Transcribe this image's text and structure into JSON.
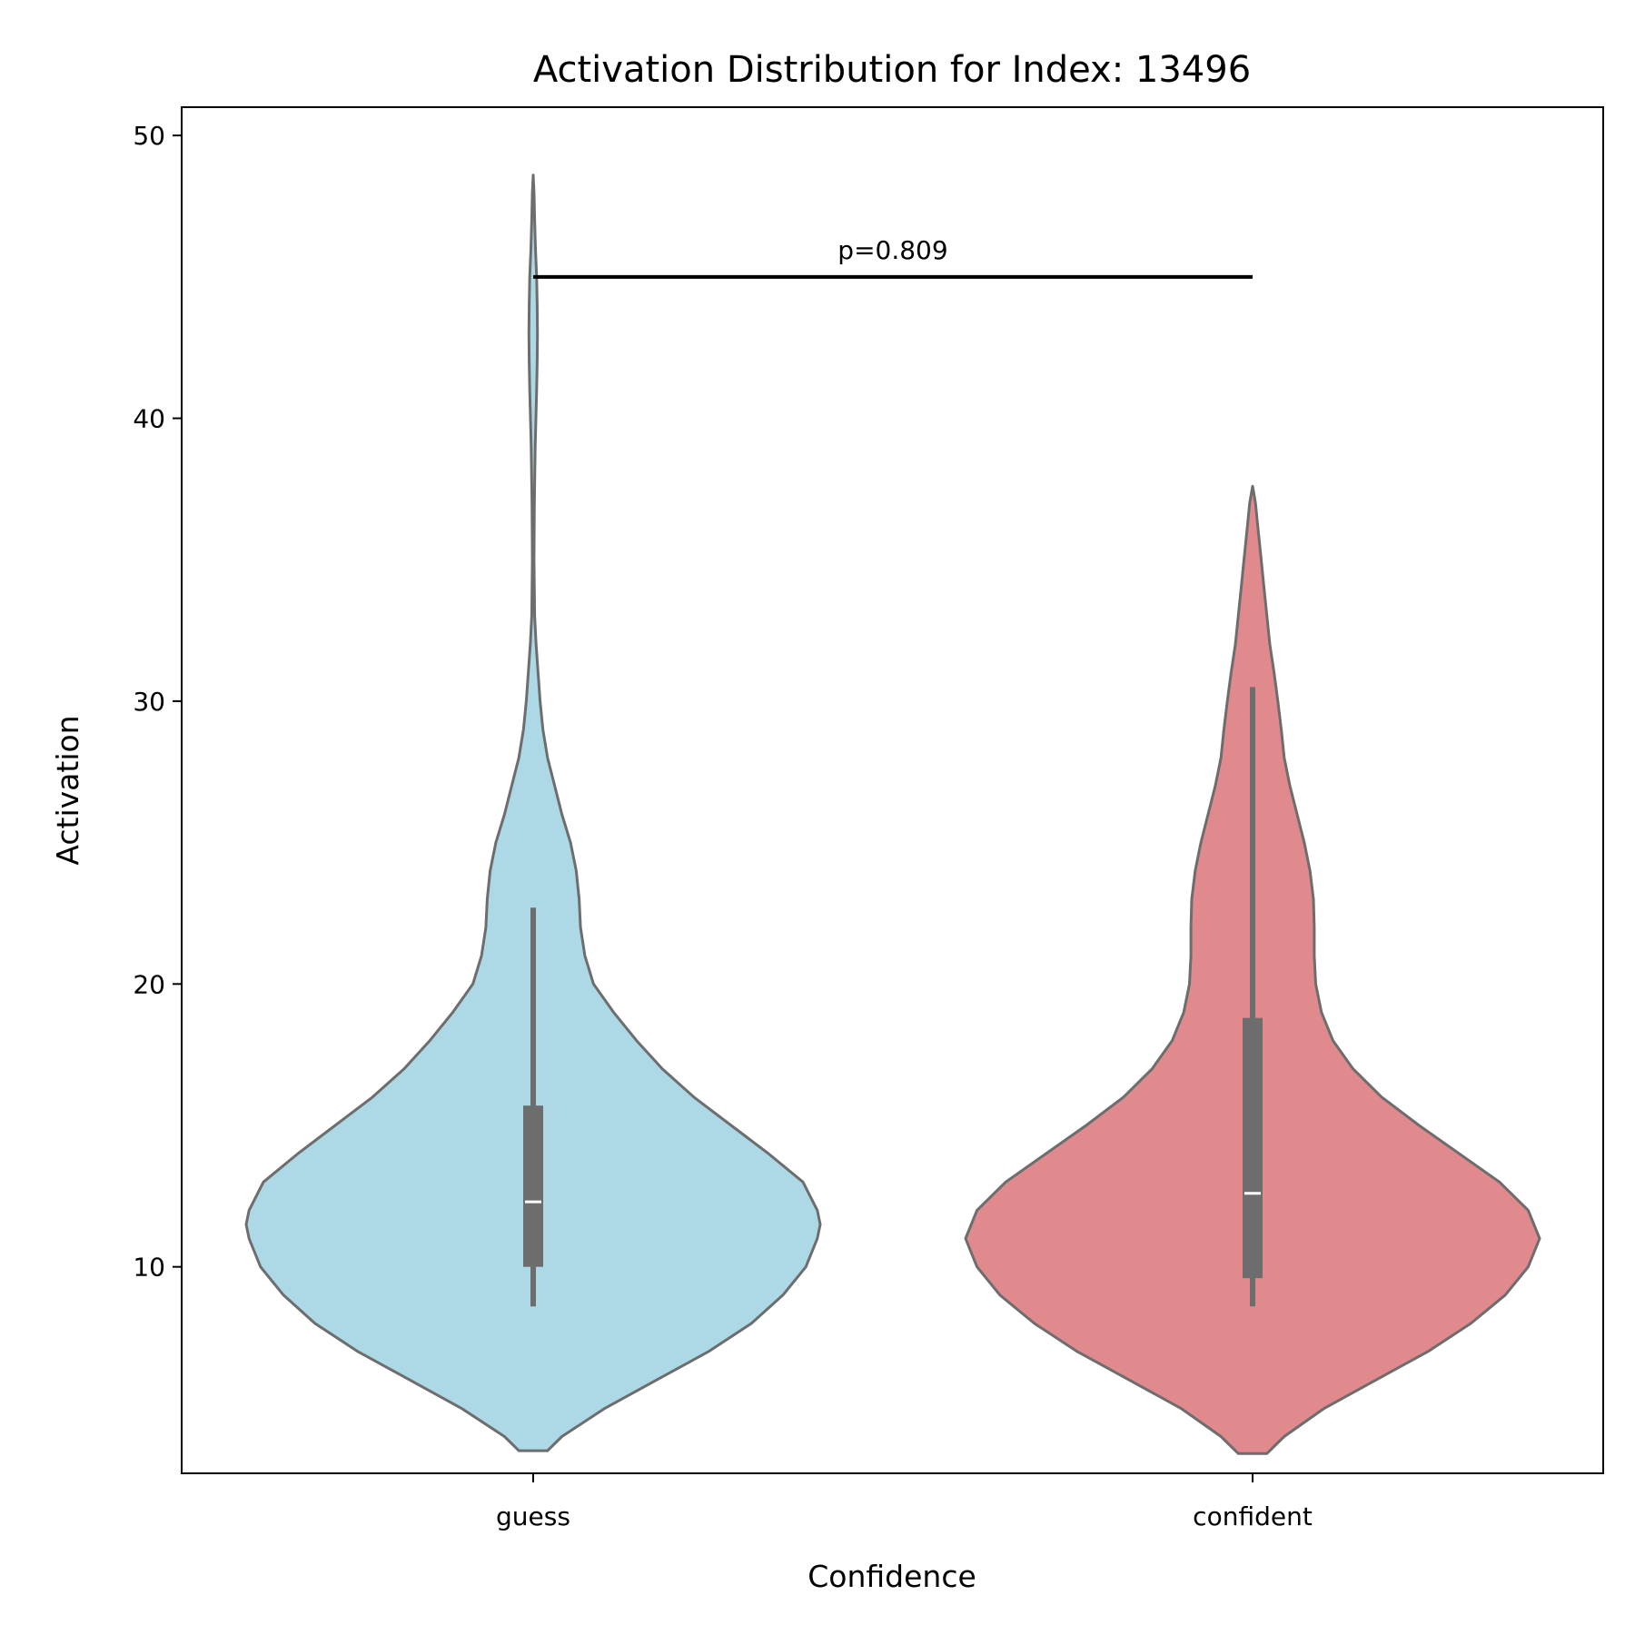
{
  "chart_data": {
    "type": "violin",
    "title": "Activation Distribution for Index: 13496",
    "xlabel": "Confidence",
    "ylabel": "Activation",
    "categories": [
      "guess",
      "confident"
    ],
    "ylim": [
      2.7,
      51.0
    ],
    "yticks": [
      10,
      20,
      30,
      40,
      50
    ],
    "grid": false,
    "series": [
      {
        "category": "guess",
        "color": "#add8e6",
        "min": 8.6,
        "q1": 10.0,
        "median": 12.3,
        "q3": 15.7,
        "whisker_high": 22.7,
        "kde_min": 3.5,
        "kde_max": 48.6,
        "density": [
          [
            3.5,
            0.05
          ],
          [
            4.0,
            0.1
          ],
          [
            5.0,
            0.25
          ],
          [
            6.0,
            0.43
          ],
          [
            7.0,
            0.61
          ],
          [
            8.0,
            0.76
          ],
          [
            9.0,
            0.87
          ],
          [
            10.0,
            0.95
          ],
          [
            11.0,
            0.99
          ],
          [
            11.5,
            1.0
          ],
          [
            12.0,
            0.99
          ],
          [
            13.0,
            0.94
          ],
          [
            14.0,
            0.82
          ],
          [
            15.0,
            0.69
          ],
          [
            16.0,
            0.56
          ],
          [
            17.0,
            0.45
          ],
          [
            18.0,
            0.36
          ],
          [
            19.0,
            0.28
          ],
          [
            20.0,
            0.21
          ],
          [
            21.0,
            0.18
          ],
          [
            22.0,
            0.165
          ],
          [
            23.0,
            0.16
          ],
          [
            24.0,
            0.15
          ],
          [
            25.0,
            0.13
          ],
          [
            26.0,
            0.1
          ],
          [
            27.0,
            0.075
          ],
          [
            28.0,
            0.05
          ],
          [
            29.0,
            0.034
          ],
          [
            30.0,
            0.024
          ],
          [
            31.0,
            0.017
          ],
          [
            32.0,
            0.01
          ],
          [
            33.0,
            0.005
          ],
          [
            35.0,
            0.003
          ],
          [
            37.0,
            0.004
          ],
          [
            39.0,
            0.007
          ],
          [
            41.0,
            0.012
          ],
          [
            42.0,
            0.014
          ],
          [
            43.0,
            0.015
          ],
          [
            44.0,
            0.014
          ],
          [
            45.0,
            0.012
          ],
          [
            46.0,
            0.008
          ],
          [
            47.0,
            0.005
          ],
          [
            48.0,
            0.003
          ],
          [
            48.6,
            0.0
          ]
        ]
      },
      {
        "category": "confident",
        "color": "#e08a8d",
        "min": 8.6,
        "q1": 9.6,
        "median": 12.6,
        "q3": 18.8,
        "whisker_high": 30.5,
        "kde_min": 3.4,
        "kde_max": 37.6,
        "density": [
          [
            3.4,
            0.05
          ],
          [
            4.0,
            0.11
          ],
          [
            5.0,
            0.25
          ],
          [
            6.0,
            0.43
          ],
          [
            7.0,
            0.61
          ],
          [
            8.0,
            0.76
          ],
          [
            9.0,
            0.88
          ],
          [
            10.0,
            0.96
          ],
          [
            11.0,
            1.0
          ],
          [
            12.0,
            0.96
          ],
          [
            13.0,
            0.86
          ],
          [
            14.0,
            0.72
          ],
          [
            15.0,
            0.58
          ],
          [
            16.0,
            0.45
          ],
          [
            17.0,
            0.35
          ],
          [
            18.0,
            0.28
          ],
          [
            19.0,
            0.24
          ],
          [
            20.0,
            0.22
          ],
          [
            21.0,
            0.215
          ],
          [
            22.0,
            0.215
          ],
          [
            23.0,
            0.212
          ],
          [
            24.0,
            0.2
          ],
          [
            25.0,
            0.18
          ],
          [
            26.0,
            0.155
          ],
          [
            27.0,
            0.13
          ],
          [
            28.0,
            0.11
          ],
          [
            29.0,
            0.1
          ],
          [
            30.0,
            0.088
          ],
          [
            31.0,
            0.075
          ],
          [
            32.0,
            0.06
          ],
          [
            33.0,
            0.05
          ],
          [
            34.0,
            0.04
          ],
          [
            35.0,
            0.03
          ],
          [
            36.0,
            0.02
          ],
          [
            37.0,
            0.01
          ],
          [
            37.6,
            0.0
          ]
        ]
      }
    ],
    "annotation": {
      "text": "p=0.809",
      "y": 45.0,
      "from": "guess",
      "to": "confident"
    }
  }
}
